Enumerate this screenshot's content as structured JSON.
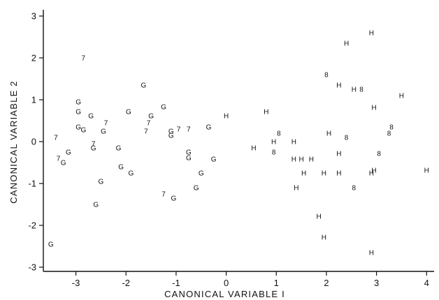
{
  "chart_data": {
    "type": "scatter",
    "title": "",
    "xlabel": "CANONICAL  VARIABLE  I",
    "ylabel": "CANONICAL  VARIABLE  2",
    "xlim": [
      -3.65,
      4.15
    ],
    "ylim": [
      -3.1,
      3.15
    ],
    "xticks": [
      -3,
      -2,
      -1,
      0,
      1,
      2,
      3,
      4
    ],
    "yticks": [
      -3,
      -2,
      -1,
      0,
      1,
      2,
      3
    ],
    "grid": false,
    "legend": "none",
    "series": [
      {
        "name": "7",
        "points": [
          [
            -2.85,
            2.0
          ],
          [
            -3.4,
            0.1
          ],
          [
            -3.35,
            -0.4
          ],
          [
            -2.4,
            0.45
          ],
          [
            -2.65,
            -0.05
          ],
          [
            -1.55,
            0.45
          ],
          [
            -1.6,
            0.25
          ],
          [
            -0.95,
            0.3
          ],
          [
            -0.75,
            0.3
          ],
          [
            -1.25,
            -1.25
          ]
        ]
      },
      {
        "name": "G",
        "points": [
          [
            -2.95,
            0.95
          ],
          [
            -2.95,
            0.72
          ],
          [
            -2.7,
            0.62
          ],
          [
            -2.95,
            0.35
          ],
          [
            -2.85,
            0.28
          ],
          [
            -2.45,
            0.25
          ],
          [
            -3.15,
            -0.25
          ],
          [
            -3.25,
            -0.5
          ],
          [
            -2.65,
            -0.15
          ],
          [
            -2.15,
            -0.15
          ],
          [
            -1.95,
            0.72
          ],
          [
            -1.65,
            1.35
          ],
          [
            -1.5,
            0.62
          ],
          [
            -1.25,
            0.83
          ],
          [
            -1.1,
            0.25
          ],
          [
            -1.1,
            0.15
          ],
          [
            -2.1,
            -0.6
          ],
          [
            -1.9,
            -0.75
          ],
          [
            -2.5,
            -0.95
          ],
          [
            -2.6,
            -1.5
          ],
          [
            -3.5,
            -2.45
          ],
          [
            -0.75,
            -0.25
          ],
          [
            -0.75,
            -0.38
          ],
          [
            -0.5,
            -0.75
          ],
          [
            -0.35,
            0.35
          ],
          [
            -0.25,
            -0.42
          ],
          [
            -0.6,
            -1.1
          ],
          [
            -1.05,
            -1.35
          ]
        ]
      },
      {
        "name": "H",
        "points": [
          [
            2.9,
            2.6
          ],
          [
            2.4,
            2.35
          ],
          [
            2.25,
            1.35
          ],
          [
            2.55,
            1.25
          ],
          [
            3.5,
            1.1
          ],
          [
            2.95,
            0.82
          ],
          [
            0.8,
            0.72
          ],
          [
            0.0,
            0.62
          ],
          [
            2.05,
            0.2
          ],
          [
            0.55,
            -0.15
          ],
          [
            0.95,
            0.0
          ],
          [
            1.35,
            0.0
          ],
          [
            2.25,
            -0.28
          ],
          [
            1.35,
            -0.42
          ],
          [
            1.5,
            -0.42
          ],
          [
            1.7,
            -0.42
          ],
          [
            1.55,
            -0.75
          ],
          [
            1.95,
            -0.75
          ],
          [
            2.25,
            -0.75
          ],
          [
            2.95,
            -0.68
          ],
          [
            2.9,
            -0.75
          ],
          [
            1.4,
            -1.1
          ],
          [
            1.85,
            -1.78
          ],
          [
            1.95,
            -2.28
          ],
          [
            2.9,
            -2.65
          ],
          [
            4.0,
            -0.68
          ]
        ]
      },
      {
        "name": "8",
        "points": [
          [
            2.0,
            1.6
          ],
          [
            2.7,
            1.25
          ],
          [
            3.3,
            0.35
          ],
          [
            3.25,
            0.2
          ],
          [
            1.05,
            0.2
          ],
          [
            2.4,
            0.1
          ],
          [
            0.95,
            -0.25
          ],
          [
            3.05,
            -0.28
          ],
          [
            2.55,
            -1.1
          ]
        ]
      }
    ]
  }
}
